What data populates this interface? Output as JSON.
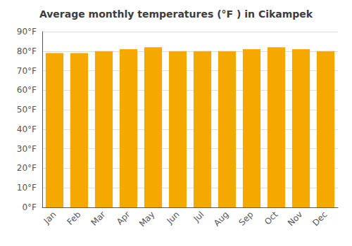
{
  "chart_data": {
    "type": "bar",
    "title": "Average monthly temperatures (°F ) in Cikampek",
    "categories": [
      "Jan",
      "Feb",
      "Mar",
      "Apr",
      "May",
      "Jun",
      "Jul",
      "Aug",
      "Sep",
      "Oct",
      "Nov",
      "Dec"
    ],
    "values": [
      79,
      79,
      80,
      81,
      82,
      80,
      80,
      80,
      81,
      82,
      81,
      80
    ],
    "color": "#F5A800",
    "ylim": [
      0,
      90
    ],
    "yticks": [
      {
        "value": 0,
        "label": "0°F"
      },
      {
        "value": 10,
        "label": "10°F"
      },
      {
        "value": 20,
        "label": "20°F"
      },
      {
        "value": 30,
        "label": "30°F"
      },
      {
        "value": 40,
        "label": "40°F"
      },
      {
        "value": 50,
        "label": "50°F"
      },
      {
        "value": 60,
        "label": "60°F"
      },
      {
        "value": 70,
        "label": "70°F"
      },
      {
        "value": 80,
        "label": "80°F"
      },
      {
        "value": 90,
        "label": "90°F"
      }
    ],
    "grid": true
  }
}
